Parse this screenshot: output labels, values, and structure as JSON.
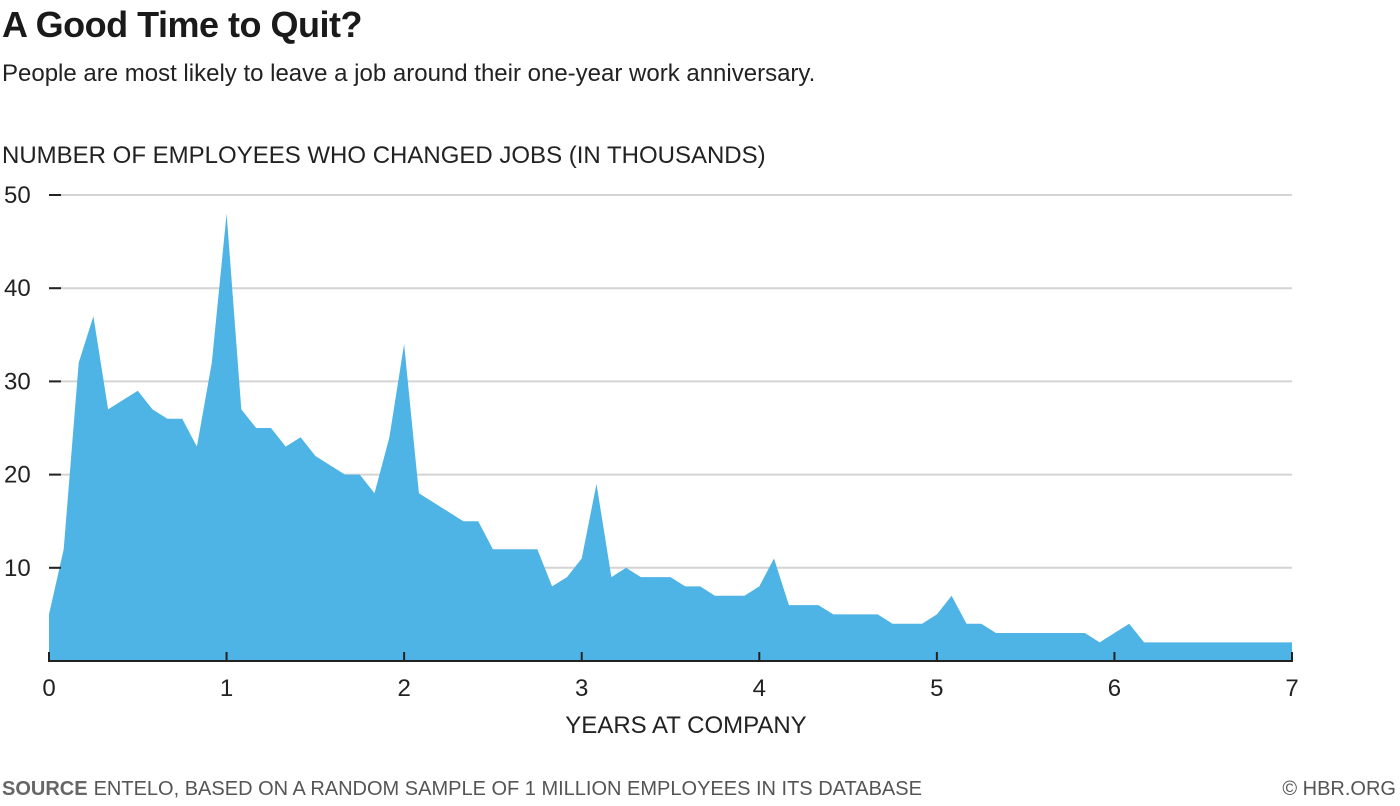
{
  "header": {
    "title": "A Good Time to Quit?",
    "subtitle": "People are most likely to leave a job around their one-year work anniversary."
  },
  "footer": {
    "source_key": "SOURCE",
    "source_text": "ENTELO, BASED ON A RANDOM SAMPLE OF 1 MILLION EMPLOYEES IN ITS DATABASE",
    "credit": "© HBR.ORG"
  },
  "colors": {
    "area": "#4eb3e5",
    "grid": "#d4d4d4",
    "axis": "#222222"
  },
  "chart_data": {
    "type": "area",
    "title": "A Good Time to Quit?",
    "ylabel": "NUMBER OF EMPLOYEES WHO CHANGED JOBS (IN THOUSANDS)",
    "xlabel": "YEARS AT COMPANY",
    "xlim": [
      0,
      7
    ],
    "ylim": [
      0,
      50
    ],
    "x_ticks": [
      0,
      1,
      2,
      3,
      4,
      5,
      6,
      7
    ],
    "y_ticks": [
      10,
      20,
      30,
      40,
      50
    ],
    "grid": "horizontal",
    "series": [
      {
        "x": [
          0,
          0.083,
          0.167,
          0.25,
          0.333,
          0.417,
          0.5,
          0.583,
          0.667,
          0.75,
          0.833,
          0.917,
          1.0,
          1.083,
          1.167,
          1.25,
          1.333,
          1.417,
          1.5,
          1.583,
          1.667,
          1.75,
          1.833,
          1.917,
          2.0,
          2.083,
          2.167,
          2.25,
          2.333,
          2.417,
          2.5,
          2.583,
          2.667,
          2.75,
          2.833,
          2.917,
          3.0,
          3.083,
          3.167,
          3.25,
          3.333,
          3.417,
          3.5,
          3.583,
          3.667,
          3.75,
          3.833,
          3.917,
          4.0,
          4.083,
          4.167,
          4.25,
          4.333,
          4.417,
          4.5,
          4.583,
          4.667,
          4.75,
          4.833,
          4.917,
          5.0,
          5.083,
          5.167,
          5.25,
          5.333,
          5.417,
          5.5,
          5.583,
          5.667,
          5.75,
          5.833,
          5.917,
          6.0,
          6.083,
          6.167,
          6.25,
          6.333,
          6.417,
          6.5,
          6.583,
          6.667,
          6.75,
          6.833,
          6.917,
          7.0
        ],
        "values": [
          5,
          12,
          32,
          37,
          27,
          28,
          29,
          27,
          26,
          26,
          23,
          32,
          48,
          27,
          25,
          25,
          23,
          24,
          22,
          21,
          20,
          20,
          18,
          24,
          34,
          18,
          17,
          16,
          15,
          15,
          12,
          12,
          12,
          12,
          8,
          9,
          11,
          19,
          9,
          10,
          9,
          9,
          9,
          8,
          8,
          7,
          7,
          7,
          8,
          11,
          6,
          6,
          6,
          5,
          5,
          5,
          5,
          4,
          4,
          4,
          5,
          7,
          4,
          4,
          3,
          3,
          3,
          3,
          3,
          3,
          3,
          2,
          3,
          4,
          2,
          2,
          2,
          2,
          2,
          2,
          2,
          2,
          2,
          2,
          2
        ]
      }
    ]
  }
}
